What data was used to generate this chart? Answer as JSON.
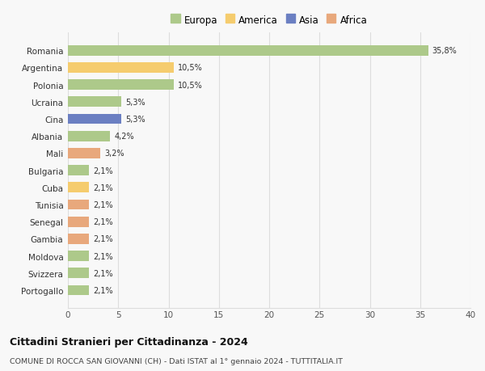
{
  "categories": [
    "Portogallo",
    "Svizzera",
    "Moldova",
    "Gambia",
    "Senegal",
    "Tunisia",
    "Cuba",
    "Bulgaria",
    "Mali",
    "Albania",
    "Cina",
    "Ucraina",
    "Polonia",
    "Argentina",
    "Romania"
  ],
  "values": [
    2.1,
    2.1,
    2.1,
    2.1,
    2.1,
    2.1,
    2.1,
    2.1,
    3.2,
    4.2,
    5.3,
    5.3,
    10.5,
    10.5,
    35.8
  ],
  "colors": [
    "#adc98a",
    "#adc98a",
    "#adc98a",
    "#e8a87c",
    "#e8a87c",
    "#e8a87c",
    "#f5cc6e",
    "#adc98a",
    "#e8a87c",
    "#adc98a",
    "#6b7fc2",
    "#adc98a",
    "#adc98a",
    "#f5cc6e",
    "#adc98a"
  ],
  "labels": [
    "2,1%",
    "2,1%",
    "2,1%",
    "2,1%",
    "2,1%",
    "2,1%",
    "2,1%",
    "2,1%",
    "3,2%",
    "4,2%",
    "5,3%",
    "5,3%",
    "10,5%",
    "10,5%",
    "35,8%"
  ],
  "xlim": [
    0,
    40
  ],
  "xticks": [
    0,
    5,
    10,
    15,
    20,
    25,
    30,
    35,
    40
  ],
  "legend_labels": [
    "Europa",
    "America",
    "Asia",
    "Africa"
  ],
  "legend_colors": [
    "#adc98a",
    "#f5cc6e",
    "#6b7fc2",
    "#e8a87c"
  ],
  "title": "Cittadini Stranieri per Cittadinanza - 2024",
  "subtitle": "COMUNE DI ROCCA SAN GIOVANNI (CH) - Dati ISTAT al 1° gennaio 2024 - TUTTITALIA.IT",
  "bg_color": "#f8f8f8",
  "grid_color": "#dddddd"
}
